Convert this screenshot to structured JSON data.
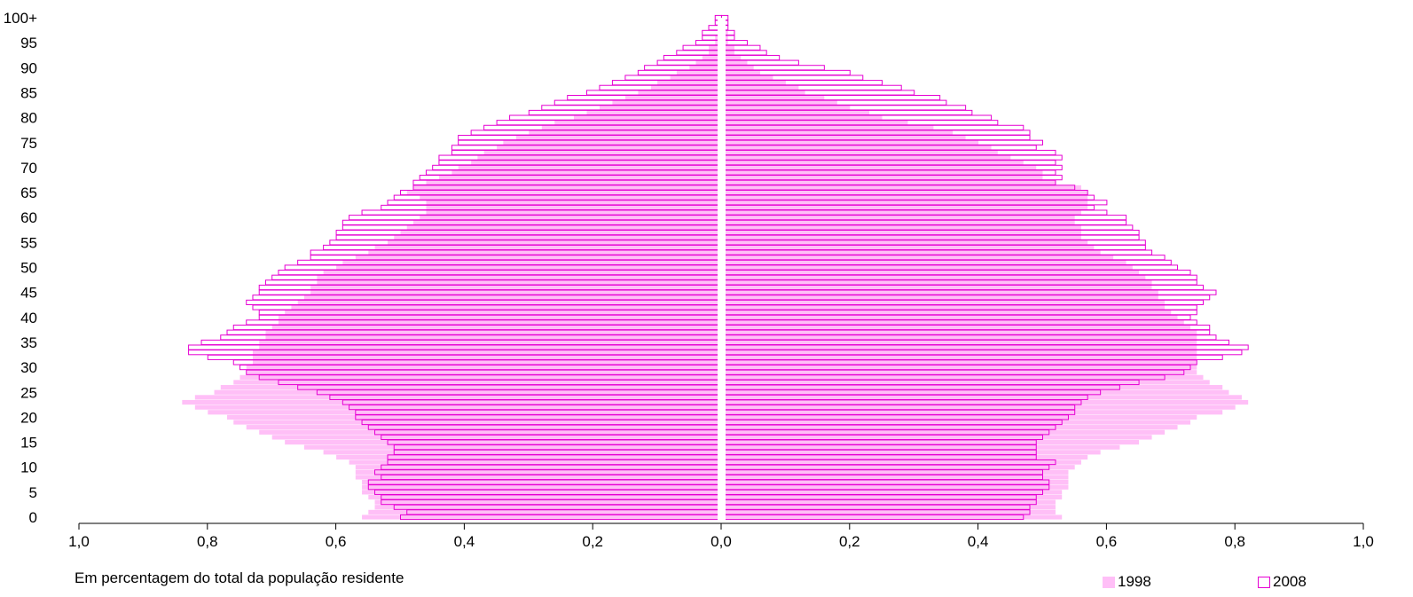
{
  "chart_data": {
    "type": "bar",
    "subtype": "population-pyramid",
    "orientation": "horizontal",
    "x_ticks": [
      "1,0",
      "0,8",
      "0,6",
      "0,4",
      "0,2",
      "0,0",
      "0,2",
      "0,4",
      "0,6",
      "0,8",
      "1,0"
    ],
    "y_ticks": [
      "0",
      "5",
      "10",
      "15",
      "20",
      "25",
      "30",
      "35",
      "40",
      "45",
      "50",
      "55",
      "60",
      "65",
      "70",
      "75",
      "80",
      "85",
      "90",
      "95",
      "100+"
    ],
    "xlim": [
      -1.0,
      1.0
    ],
    "ages": [
      0,
      1,
      2,
      3,
      4,
      5,
      6,
      7,
      8,
      9,
      10,
      11,
      12,
      13,
      14,
      15,
      16,
      17,
      18,
      19,
      20,
      21,
      22,
      23,
      24,
      25,
      26,
      27,
      28,
      29,
      30,
      31,
      32,
      33,
      34,
      35,
      36,
      37,
      38,
      39,
      40,
      41,
      42,
      43,
      44,
      45,
      46,
      47,
      48,
      49,
      50,
      51,
      52,
      53,
      54,
      55,
      56,
      57,
      58,
      59,
      60,
      61,
      62,
      63,
      64,
      65,
      66,
      67,
      68,
      69,
      70,
      71,
      72,
      73,
      74,
      75,
      76,
      77,
      78,
      79,
      80,
      81,
      82,
      83,
      84,
      85,
      86,
      87,
      88,
      89,
      90,
      91,
      92,
      93,
      94,
      95,
      96,
      97,
      98,
      99,
      100
    ],
    "series": [
      {
        "name": "1998",
        "style": "filled",
        "color": "#ffbff7",
        "left": [
          0.56,
          0.55,
          0.54,
          0.54,
          0.55,
          0.56,
          0.56,
          0.56,
          0.57,
          0.57,
          0.57,
          0.58,
          0.6,
          0.62,
          0.65,
          0.68,
          0.7,
          0.72,
          0.74,
          0.76,
          0.77,
          0.8,
          0.82,
          0.84,
          0.82,
          0.79,
          0.78,
          0.76,
          0.75,
          0.74,
          0.74,
          0.73,
          0.73,
          0.73,
          0.72,
          0.72,
          0.71,
          0.71,
          0.7,
          0.69,
          0.69,
          0.68,
          0.67,
          0.66,
          0.65,
          0.64,
          0.64,
          0.63,
          0.63,
          0.62,
          0.6,
          0.59,
          0.57,
          0.55,
          0.54,
          0.52,
          0.51,
          0.5,
          0.49,
          0.48,
          0.47,
          0.46,
          0.46,
          0.46,
          0.47,
          0.49,
          0.48,
          0.46,
          0.44,
          0.42,
          0.41,
          0.39,
          0.38,
          0.37,
          0.35,
          0.34,
          0.32,
          0.3,
          0.28,
          0.26,
          0.23,
          0.21,
          0.19,
          0.17,
          0.15,
          0.13,
          0.11,
          0.1,
          0.08,
          0.07,
          0.05,
          0.04,
          0.03,
          0.02,
          0.02,
          0.01,
          0.01,
          0.0,
          0.0,
          0.0,
          0.0
        ],
        "right": [
          0.53,
          0.52,
          0.52,
          0.52,
          0.53,
          0.53,
          0.54,
          0.54,
          0.54,
          0.54,
          0.55,
          0.56,
          0.57,
          0.59,
          0.62,
          0.65,
          0.67,
          0.69,
          0.71,
          0.73,
          0.74,
          0.78,
          0.8,
          0.82,
          0.81,
          0.79,
          0.78,
          0.76,
          0.75,
          0.74,
          0.74,
          0.74,
          0.74,
          0.74,
          0.74,
          0.74,
          0.74,
          0.74,
          0.73,
          0.72,
          0.71,
          0.7,
          0.69,
          0.69,
          0.68,
          0.68,
          0.67,
          0.67,
          0.66,
          0.65,
          0.64,
          0.63,
          0.61,
          0.59,
          0.58,
          0.57,
          0.56,
          0.56,
          0.56,
          0.55,
          0.55,
          0.56,
          0.57,
          0.57,
          0.57,
          0.57,
          0.56,
          0.52,
          0.5,
          0.5,
          0.49,
          0.47,
          0.45,
          0.43,
          0.42,
          0.4,
          0.38,
          0.36,
          0.33,
          0.29,
          0.25,
          0.23,
          0.2,
          0.18,
          0.16,
          0.13,
          0.12,
          0.1,
          0.08,
          0.06,
          0.05,
          0.04,
          0.03,
          0.02,
          0.02,
          0.01,
          0.01,
          0.01,
          0.0,
          0.0,
          0.0
        ]
      },
      {
        "name": "2008",
        "style": "outline",
        "color": "#e600d3",
        "left": [
          0.5,
          0.49,
          0.51,
          0.53,
          0.53,
          0.54,
          0.55,
          0.55,
          0.53,
          0.54,
          0.53,
          0.52,
          0.52,
          0.51,
          0.51,
          0.52,
          0.53,
          0.54,
          0.55,
          0.56,
          0.57,
          0.57,
          0.58,
          0.59,
          0.61,
          0.63,
          0.66,
          0.69,
          0.72,
          0.74,
          0.75,
          0.76,
          0.8,
          0.83,
          0.83,
          0.81,
          0.78,
          0.77,
          0.76,
          0.74,
          0.72,
          0.72,
          0.73,
          0.74,
          0.73,
          0.72,
          0.72,
          0.71,
          0.7,
          0.69,
          0.68,
          0.66,
          0.64,
          0.64,
          0.62,
          0.61,
          0.6,
          0.6,
          0.59,
          0.59,
          0.58,
          0.56,
          0.53,
          0.52,
          0.51,
          0.5,
          0.48,
          0.48,
          0.47,
          0.46,
          0.45,
          0.44,
          0.44,
          0.42,
          0.42,
          0.41,
          0.41,
          0.39,
          0.37,
          0.35,
          0.33,
          0.3,
          0.28,
          0.26,
          0.24,
          0.21,
          0.19,
          0.17,
          0.15,
          0.13,
          0.12,
          0.1,
          0.09,
          0.07,
          0.06,
          0.04,
          0.03,
          0.03,
          0.02,
          0.01,
          0.01
        ],
        "right": [
          0.47,
          0.48,
          0.48,
          0.49,
          0.49,
          0.5,
          0.51,
          0.51,
          0.5,
          0.5,
          0.51,
          0.52,
          0.49,
          0.49,
          0.49,
          0.49,
          0.5,
          0.51,
          0.52,
          0.53,
          0.54,
          0.55,
          0.55,
          0.56,
          0.57,
          0.59,
          0.62,
          0.65,
          0.69,
          0.72,
          0.73,
          0.74,
          0.78,
          0.81,
          0.82,
          0.79,
          0.77,
          0.76,
          0.76,
          0.74,
          0.73,
          0.74,
          0.74,
          0.75,
          0.76,
          0.77,
          0.75,
          0.74,
          0.74,
          0.73,
          0.71,
          0.7,
          0.69,
          0.67,
          0.66,
          0.66,
          0.65,
          0.65,
          0.64,
          0.63,
          0.63,
          0.6,
          0.58,
          0.6,
          0.58,
          0.57,
          0.55,
          0.52,
          0.53,
          0.52,
          0.53,
          0.52,
          0.53,
          0.52,
          0.49,
          0.5,
          0.48,
          0.48,
          0.47,
          0.43,
          0.42,
          0.39,
          0.38,
          0.35,
          0.34,
          0.3,
          0.28,
          0.25,
          0.22,
          0.2,
          0.16,
          0.12,
          0.09,
          0.07,
          0.06,
          0.04,
          0.02,
          0.02,
          0.01,
          0.01,
          0.01
        ]
      }
    ],
    "xlabel": "Em percentagem do total da população residente",
    "legend": [
      {
        "label": "1998",
        "style": "filled"
      },
      {
        "label": "2008",
        "style": "outline"
      }
    ],
    "legend_position": "bottom-right",
    "grid": false
  }
}
